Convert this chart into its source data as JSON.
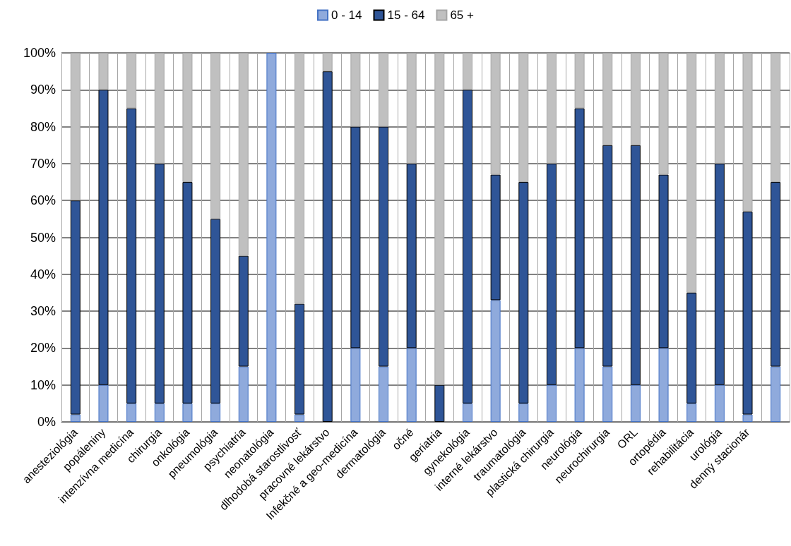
{
  "chart_data": {
    "type": "bar",
    "stacked": true,
    "categories": [
      "anesteziológia",
      "popáleniny",
      "intenzívna medicína",
      "chirurgia",
      "onkológia",
      "pneumológia",
      "psychiatria",
      "neonatológia",
      "dlhodobá starostlivosť",
      "pracovné lekárstvo",
      "Infekčné a geo-medicína",
      "dermatológia",
      "očné",
      "geriatria",
      "gynekológia",
      "interné lekárstvo",
      "traumatológia",
      "plastická chirurgia",
      "neurológia",
      "neurochirurgia",
      "ORL",
      "ortopédia",
      "rehabilitácia",
      "urológia",
      "denný stacionár",
      null
    ],
    "series": [
      {
        "name": "0 - 14",
        "color": "#8faadc",
        "values": [
          2,
          10,
          5,
          5,
          5,
          5,
          15,
          100,
          2,
          0,
          20,
          15,
          20,
          0,
          5,
          33,
          5,
          10,
          20,
          15,
          10,
          20,
          5,
          10,
          2,
          15
        ]
      },
      {
        "name": "15 - 64",
        "color": "#2f5597",
        "values": [
          58,
          80,
          80,
          65,
          60,
          50,
          30,
          0,
          30,
          95,
          60,
          65,
          50,
          10,
          85,
          34,
          60,
          60,
          65,
          60,
          65,
          47,
          30,
          60,
          55,
          50
        ]
      },
      {
        "name": "65 +",
        "color": "#c0c0c0",
        "values": [
          40,
          10,
          15,
          30,
          35,
          45,
          55,
          0,
          68,
          5,
          20,
          20,
          30,
          90,
          10,
          33,
          35,
          30,
          15,
          25,
          25,
          33,
          65,
          30,
          43,
          35
        ]
      }
    ],
    "ylim": [
      0,
      100
    ],
    "yticks": [
      {
        "value": 0,
        "label": "0%"
      },
      {
        "value": 10,
        "label": "10%"
      },
      {
        "value": 20,
        "label": "20%"
      },
      {
        "value": 30,
        "label": "30%"
      },
      {
        "value": 40,
        "label": "40%"
      },
      {
        "value": 50,
        "label": "50%"
      },
      {
        "value": 60,
        "label": "60%"
      },
      {
        "value": 70,
        "label": "70%"
      },
      {
        "value": 80,
        "label": "80%"
      },
      {
        "value": 90,
        "label": "90%"
      },
      {
        "value": 100,
        "label": "100%"
      }
    ],
    "grid": true,
    "legend": "top"
  }
}
